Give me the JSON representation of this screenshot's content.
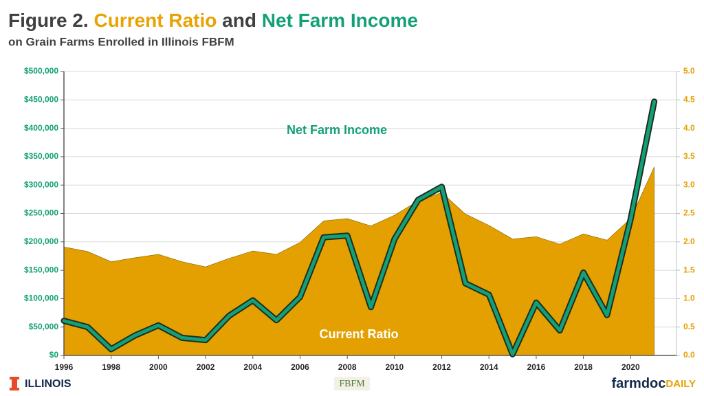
{
  "chart_data": {
    "type": "combo",
    "title_parts": [
      {
        "text": "Figure 2.",
        "color": "#404040"
      },
      {
        "text": "Current Ratio",
        "color": "#e8a202"
      },
      {
        "text": "and",
        "color": "#404040"
      },
      {
        "text": "Net Farm Income",
        "color": "#14a077"
      }
    ],
    "subtitle": "on Grain Farms Enrolled in Illinois FBFM",
    "x": [
      1996,
      1997,
      1998,
      1999,
      2000,
      2001,
      2002,
      2003,
      2004,
      2005,
      2006,
      2007,
      2008,
      2009,
      2010,
      2011,
      2012,
      2013,
      2014,
      2015,
      2016,
      2017,
      2018,
      2019,
      2020,
      2021
    ],
    "xlim": [
      1996,
      2022
    ],
    "xticks": [
      1996,
      1998,
      2000,
      2002,
      2004,
      2006,
      2008,
      2010,
      2012,
      2014,
      2016,
      2018,
      2020
    ],
    "ylim": [
      0,
      500000
    ],
    "yticks": [
      {
        "value": 0,
        "label": "$0"
      },
      {
        "value": 50000,
        "label": "$50,000"
      },
      {
        "value": 100000,
        "label": "$100,000"
      },
      {
        "value": 150000,
        "label": "$150,000"
      },
      {
        "value": 200000,
        "label": "$200,000"
      },
      {
        "value": 250000,
        "label": "$250,000"
      },
      {
        "value": 300000,
        "label": "$300,000"
      },
      {
        "value": 350000,
        "label": "$350,000"
      },
      {
        "value": 400000,
        "label": "$400,000"
      },
      {
        "value": 450000,
        "label": "$450,000"
      },
      {
        "value": 500000,
        "label": "$500,000"
      }
    ],
    "y2lim": [
      0,
      5
    ],
    "y2ticks": [
      {
        "value": 0,
        "label": "0.0"
      },
      0.5,
      {
        "value": 1,
        "label": "1.0"
      },
      1.5,
      {
        "value": 2,
        "label": "2.0"
      },
      2.5,
      {
        "value": 3,
        "label": "3.0"
      },
      3.5,
      {
        "value": 4,
        "label": "4.0"
      },
      4.5,
      {
        "value": 5,
        "label": "5.0"
      }
    ],
    "grid": true,
    "series": [
      {
        "name": "Current Ratio",
        "type": "area",
        "axis": "y2",
        "color": "#e3a000",
        "label_color": "#ffffff",
        "values": [
          1.91,
          1.83,
          1.65,
          1.72,
          1.78,
          1.65,
          1.56,
          1.71,
          1.84,
          1.78,
          1.99,
          2.37,
          2.41,
          2.28,
          2.47,
          2.72,
          2.87,
          2.49,
          2.29,
          2.05,
          2.09,
          1.96,
          2.14,
          2.03,
          2.41,
          3.32
        ]
      },
      {
        "name": "Net Farm Income",
        "type": "line",
        "color": "#14a077",
        "label_color": "#14a077",
        "values": [
          61000,
          50000,
          11000,
          35000,
          53000,
          31000,
          27000,
          70000,
          97000,
          62000,
          103000,
          208000,
          211000,
          85000,
          205000,
          274000,
          297000,
          127000,
          107000,
          2000,
          93000,
          44000,
          146000,
          71000,
          240000,
          447000
        ]
      }
    ],
    "footer": {
      "left": "ILLINOIS",
      "center": "FBFM",
      "right_a": "farmdoc",
      "right_b": "DAILY"
    }
  }
}
